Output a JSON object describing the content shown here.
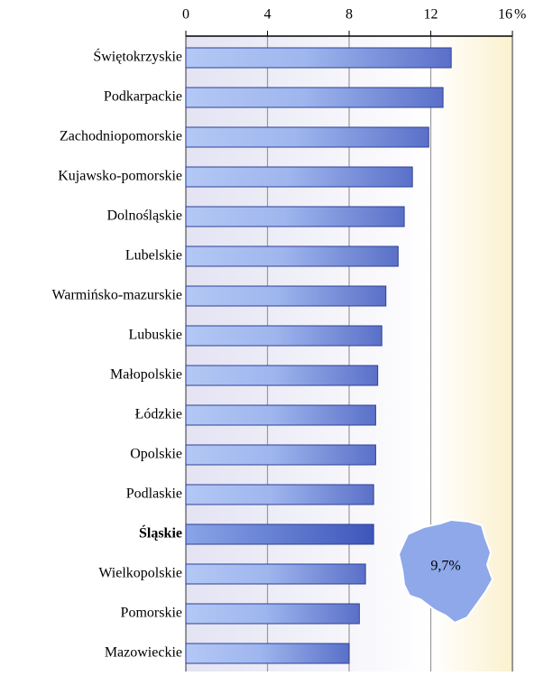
{
  "chart_data": {
    "type": "bar",
    "orientation": "horizontal",
    "categories": [
      "Świętokrzyskie",
      "Podkarpackie",
      "Zachodniopomorskie",
      "Kujawsko-pomorskie",
      "Dolnośląskie",
      "Lubelskie",
      "Warmińsko-mazurskie",
      "Lubuskie",
      "Małopolskie",
      "Łódzkie",
      "Opolskie",
      "Podlaskie",
      "Śląskie",
      "Wielkopolskie",
      "Pomorskie",
      "Mazowieckie"
    ],
    "values": [
      13.0,
      12.6,
      11.9,
      11.1,
      10.7,
      10.4,
      9.8,
      9.6,
      9.4,
      9.3,
      9.3,
      9.2,
      9.2,
      8.8,
      8.5,
      8.0
    ],
    "highlight": "Śląskie",
    "xlim": [
      0,
      16
    ],
    "xticks": [
      0,
      4,
      8,
      12,
      16
    ],
    "x_unit": "%",
    "grid": true,
    "color": "#6f8ad8",
    "annotation": "9,7%"
  }
}
